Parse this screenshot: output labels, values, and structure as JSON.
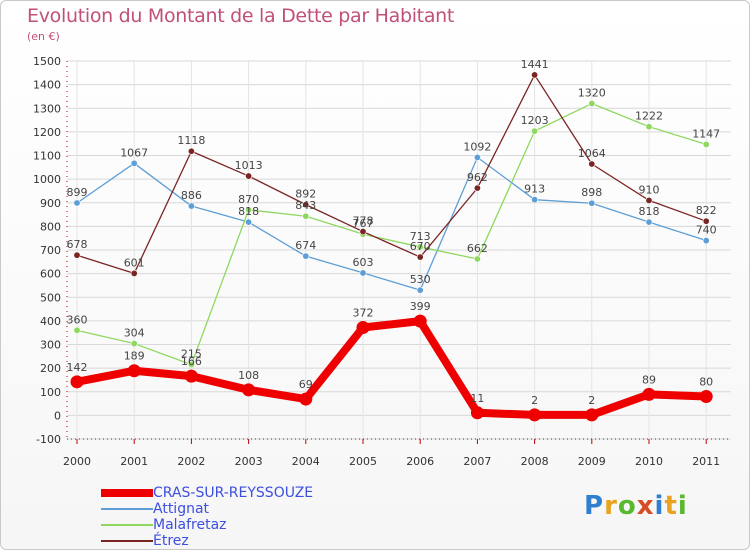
{
  "title": "Evolution du Montant de la Dette par Habitant",
  "subtitle": "(en €)",
  "logo_text": "Proxiti",
  "logo_colors": [
    "#2f7fd0",
    "#e8a320",
    "#58b82e",
    "#d84b25",
    "#2f7fd0",
    "#e8a320",
    "#58b82e"
  ],
  "chart_data": {
    "type": "line",
    "title": "Evolution du Montant de la Dette par Habitant",
    "subtitle": "(en €)",
    "xlabel": "",
    "ylabel": "",
    "x": [
      "2000",
      "2001",
      "2002",
      "2003",
      "2004",
      "2005",
      "2006",
      "2007",
      "2008",
      "2009",
      "2010",
      "2011"
    ],
    "ylim": [
      -100,
      1500
    ],
    "yticks": [
      -100,
      0,
      100,
      200,
      300,
      400,
      500,
      600,
      700,
      800,
      900,
      1000,
      1100,
      1200,
      1300,
      1400,
      1500
    ],
    "grid": true,
    "legend_position": "bottom-left",
    "series": [
      {
        "name": "CRAS-SUR-REYSSOUZE",
        "color": "#ee0000",
        "values": [
          142,
          189,
          166,
          108,
          69,
          372,
          399,
          11,
          2,
          2,
          89,
          80
        ],
        "labels": [
          "142",
          "189",
          "166",
          "108",
          "69",
          "372",
          "399",
          "11",
          "2",
          "2",
          "89",
          "80"
        ],
        "emphasis": true
      },
      {
        "name": "Attignat",
        "color": "#5d9ed6",
        "values": [
          899,
          1067,
          886,
          818,
          674,
          603,
          530,
          1092,
          913,
          898,
          818,
          740
        ],
        "labels": [
          "899",
          "1067",
          "886",
          "818",
          "674",
          "603",
          "530",
          "1092",
          "913",
          "898",
          "818",
          "740"
        ],
        "emphasis": false
      },
      {
        "name": "Malafretaz",
        "color": "#8ed85f",
        "values": [
          360,
          304,
          215,
          870,
          843,
          767,
          713,
          662,
          1203,
          1320,
          1222,
          1147
        ],
        "labels": [
          "360",
          "304",
          "215",
          "870",
          "843",
          "767",
          "713",
          "662",
          "1203",
          "1320",
          "1222",
          "1147"
        ],
        "emphasis": false
      },
      {
        "name": "Étrez",
        "color": "#7a2424",
        "values": [
          678,
          601,
          1118,
          1013,
          892,
          778,
          670,
          962,
          1441,
          1064,
          910,
          822
        ],
        "labels": [
          "678",
          "601",
          "1118",
          "1013",
          "892",
          "778",
          "670",
          "962",
          "1441",
          "1064",
          "910",
          "822"
        ],
        "emphasis": false
      }
    ]
  }
}
